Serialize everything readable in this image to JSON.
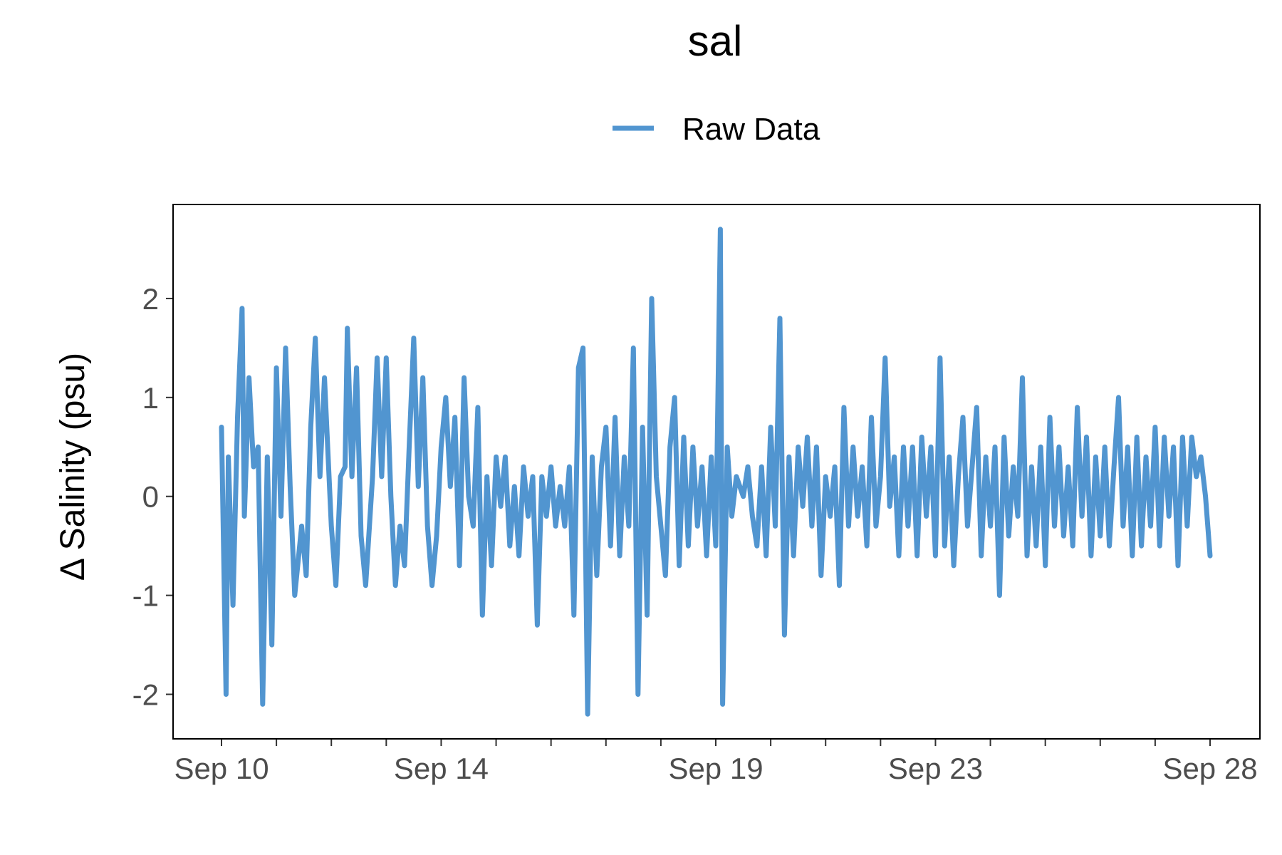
{
  "chart_data": {
    "type": "line",
    "title": "sal",
    "xlabel": "",
    "ylabel": "Δ Salinity (psu)",
    "x_range": [
      "2023-09-10",
      "2023-09-28"
    ],
    "ylim": [
      -2.45,
      2.95
    ],
    "grid": false,
    "legend_position": "top",
    "x_tick_labels": [
      "Sep 10",
      "Sep 14",
      "Sep 19",
      "Sep 23",
      "Sep 28"
    ],
    "x_tick_dates": [
      "2023-09-10",
      "2023-09-14",
      "2023-09-19",
      "2023-09-23",
      "2023-09-28"
    ],
    "x_minor_tick_dates": [
      "2023-09-11",
      "2023-09-12",
      "2023-09-13",
      "2023-09-15",
      "2023-09-16",
      "2023-09-17",
      "2023-09-18",
      "2023-09-20",
      "2023-09-21",
      "2023-09-22",
      "2023-09-24",
      "2023-09-25",
      "2023-09-26",
      "2023-09-27"
    ],
    "y_ticks": [
      -2,
      -1,
      0,
      1,
      2
    ],
    "y_tick_labels": [
      "-2",
      "-1",
      "0",
      "1",
      "2"
    ],
    "series": [
      {
        "name": "Raw Data",
        "color": "#5195d0",
        "points": [
          [
            "2023-09-10 00:00",
            0.7
          ],
          [
            "2023-09-10 02:00",
            -2.0
          ],
          [
            "2023-09-10 03:00",
            0.4
          ],
          [
            "2023-09-10 05:00",
            -1.1
          ],
          [
            "2023-09-10 07:00",
            0.8
          ],
          [
            "2023-09-10 09:00",
            1.9
          ],
          [
            "2023-09-10 10:00",
            -0.2
          ],
          [
            "2023-09-10 12:00",
            1.2
          ],
          [
            "2023-09-10 14:00",
            0.3
          ],
          [
            "2023-09-10 16:00",
            0.5
          ],
          [
            "2023-09-10 18:00",
            -2.1
          ],
          [
            "2023-09-10 20:00",
            0.4
          ],
          [
            "2023-09-10 22:00",
            -1.5
          ],
          [
            "2023-09-11 00:00",
            1.3
          ],
          [
            "2023-09-11 02:00",
            -0.2
          ],
          [
            "2023-09-11 04:00",
            1.5
          ],
          [
            "2023-09-11 06:00",
            0.1
          ],
          [
            "2023-09-11 08:00",
            -1.0
          ],
          [
            "2023-09-11 11:00",
            -0.3
          ],
          [
            "2023-09-11 13:00",
            -0.8
          ],
          [
            "2023-09-11 15:00",
            0.7
          ],
          [
            "2023-09-11 17:00",
            1.6
          ],
          [
            "2023-09-11 19:00",
            0.2
          ],
          [
            "2023-09-11 21:00",
            1.2
          ],
          [
            "2023-09-12 00:00",
            -0.3
          ],
          [
            "2023-09-12 02:00",
            -0.9
          ],
          [
            "2023-09-12 04:00",
            0.2
          ],
          [
            "2023-09-12 06:00",
            0.3
          ],
          [
            "2023-09-12 07:00",
            1.7
          ],
          [
            "2023-09-12 09:00",
            0.2
          ],
          [
            "2023-09-12 11:00",
            1.3
          ],
          [
            "2023-09-12 13:00",
            -0.4
          ],
          [
            "2023-09-12 15:00",
            -0.9
          ],
          [
            "2023-09-12 18:00",
            0.2
          ],
          [
            "2023-09-12 20:00",
            1.4
          ],
          [
            "2023-09-12 22:00",
            0.2
          ],
          [
            "2023-09-13 00:00",
            1.4
          ],
          [
            "2023-09-13 02:00",
            0.0
          ],
          [
            "2023-09-13 04:00",
            -0.9
          ],
          [
            "2023-09-13 06:00",
            -0.3
          ],
          [
            "2023-09-13 08:00",
            -0.7
          ],
          [
            "2023-09-13 10:00",
            0.5
          ],
          [
            "2023-09-13 12:00",
            1.6
          ],
          [
            "2023-09-13 14:00",
            0.1
          ],
          [
            "2023-09-13 16:00",
            1.2
          ],
          [
            "2023-09-13 18:00",
            -0.3
          ],
          [
            "2023-09-13 20:00",
            -0.9
          ],
          [
            "2023-09-13 22:00",
            -0.4
          ],
          [
            "2023-09-14 00:00",
            0.5
          ],
          [
            "2023-09-14 02:00",
            1.0
          ],
          [
            "2023-09-14 04:00",
            0.1
          ],
          [
            "2023-09-14 06:00",
            0.8
          ],
          [
            "2023-09-14 08:00",
            -0.7
          ],
          [
            "2023-09-14 10:00",
            1.2
          ],
          [
            "2023-09-14 12:00",
            0.0
          ],
          [
            "2023-09-14 14:00",
            -0.3
          ],
          [
            "2023-09-14 16:00",
            0.9
          ],
          [
            "2023-09-14 18:00",
            -1.2
          ],
          [
            "2023-09-14 20:00",
            0.2
          ],
          [
            "2023-09-14 22:00",
            -0.7
          ],
          [
            "2023-09-15 00:00",
            0.4
          ],
          [
            "2023-09-15 02:00",
            -0.1
          ],
          [
            "2023-09-15 04:00",
            0.4
          ],
          [
            "2023-09-15 06:00",
            -0.5
          ],
          [
            "2023-09-15 08:00",
            0.1
          ],
          [
            "2023-09-15 10:00",
            -0.6
          ],
          [
            "2023-09-15 12:00",
            0.3
          ],
          [
            "2023-09-15 14:00",
            -0.2
          ],
          [
            "2023-09-15 16:00",
            0.2
          ],
          [
            "2023-09-15 18:00",
            -1.3
          ],
          [
            "2023-09-15 20:00",
            0.2
          ],
          [
            "2023-09-15 22:00",
            -0.2
          ],
          [
            "2023-09-16 00:00",
            0.3
          ],
          [
            "2023-09-16 02:00",
            -0.3
          ],
          [
            "2023-09-16 04:00",
            0.1
          ],
          [
            "2023-09-16 06:00",
            -0.3
          ],
          [
            "2023-09-16 08:00",
            0.3
          ],
          [
            "2023-09-16 10:00",
            -1.2
          ],
          [
            "2023-09-16 12:00",
            1.3
          ],
          [
            "2023-09-16 14:00",
            1.5
          ],
          [
            "2023-09-16 16:00",
            -2.2
          ],
          [
            "2023-09-16 18:00",
            0.4
          ],
          [
            "2023-09-16 20:00",
            -0.8
          ],
          [
            "2023-09-16 22:00",
            0.3
          ],
          [
            "2023-09-17 00:00",
            0.7
          ],
          [
            "2023-09-17 02:00",
            -0.5
          ],
          [
            "2023-09-17 04:00",
            0.8
          ],
          [
            "2023-09-17 06:00",
            -0.6
          ],
          [
            "2023-09-17 08:00",
            0.4
          ],
          [
            "2023-09-17 10:00",
            -0.3
          ],
          [
            "2023-09-17 12:00",
            1.5
          ],
          [
            "2023-09-17 14:00",
            -2.0
          ],
          [
            "2023-09-17 16:00",
            0.7
          ],
          [
            "2023-09-17 18:00",
            -1.2
          ],
          [
            "2023-09-17 20:00",
            2.0
          ],
          [
            "2023-09-17 22:00",
            0.2
          ],
          [
            "2023-09-18 00:00",
            -0.3
          ],
          [
            "2023-09-18 02:00",
            -0.8
          ],
          [
            "2023-09-18 04:00",
            0.5
          ],
          [
            "2023-09-18 06:00",
            1.0
          ],
          [
            "2023-09-18 08:00",
            -0.7
          ],
          [
            "2023-09-18 10:00",
            0.6
          ],
          [
            "2023-09-18 12:00",
            -0.5
          ],
          [
            "2023-09-18 14:00",
            0.5
          ],
          [
            "2023-09-18 16:00",
            -0.3
          ],
          [
            "2023-09-18 18:00",
            0.3
          ],
          [
            "2023-09-18 20:00",
            -0.6
          ],
          [
            "2023-09-18 22:00",
            0.4
          ],
          [
            "2023-09-19 00:00",
            -0.5
          ],
          [
            "2023-09-19 02:00",
            2.7
          ],
          [
            "2023-09-19 03:00",
            -2.1
          ],
          [
            "2023-09-19 05:00",
            0.5
          ],
          [
            "2023-09-19 07:00",
            -0.2
          ],
          [
            "2023-09-19 09:00",
            0.2
          ],
          [
            "2023-09-19 12:00",
            0.0
          ],
          [
            "2023-09-19 14:00",
            0.3
          ],
          [
            "2023-09-19 16:00",
            -0.2
          ],
          [
            "2023-09-19 18:00",
            -0.5
          ],
          [
            "2023-09-19 20:00",
            0.3
          ],
          [
            "2023-09-19 22:00",
            -0.6
          ],
          [
            "2023-09-20 00:00",
            0.7
          ],
          [
            "2023-09-20 02:00",
            -0.3
          ],
          [
            "2023-09-20 04:00",
            1.8
          ],
          [
            "2023-09-20 06:00",
            -1.4
          ],
          [
            "2023-09-20 08:00",
            0.4
          ],
          [
            "2023-09-20 10:00",
            -0.6
          ],
          [
            "2023-09-20 12:00",
            0.5
          ],
          [
            "2023-09-20 14:00",
            -0.1
          ],
          [
            "2023-09-20 16:00",
            0.6
          ],
          [
            "2023-09-20 18:00",
            -0.3
          ],
          [
            "2023-09-20 20:00",
            0.5
          ],
          [
            "2023-09-20 22:00",
            -0.8
          ],
          [
            "2023-09-21 00:00",
            0.2
          ],
          [
            "2023-09-21 02:00",
            -0.2
          ],
          [
            "2023-09-21 04:00",
            0.3
          ],
          [
            "2023-09-21 06:00",
            -0.9
          ],
          [
            "2023-09-21 08:00",
            0.9
          ],
          [
            "2023-09-21 10:00",
            -0.3
          ],
          [
            "2023-09-21 12:00",
            0.5
          ],
          [
            "2023-09-21 14:00",
            -0.2
          ],
          [
            "2023-09-21 16:00",
            0.3
          ],
          [
            "2023-09-21 18:00",
            -0.5
          ],
          [
            "2023-09-21 20:00",
            0.8
          ],
          [
            "2023-09-21 22:00",
            -0.3
          ],
          [
            "2023-09-22 00:00",
            0.2
          ],
          [
            "2023-09-22 02:00",
            1.4
          ],
          [
            "2023-09-22 04:00",
            -0.1
          ],
          [
            "2023-09-22 06:00",
            0.4
          ],
          [
            "2023-09-22 08:00",
            -0.6
          ],
          [
            "2023-09-22 10:00",
            0.5
          ],
          [
            "2023-09-22 12:00",
            -0.3
          ],
          [
            "2023-09-22 14:00",
            0.5
          ],
          [
            "2023-09-22 16:00",
            -0.6
          ],
          [
            "2023-09-22 18:00",
            0.6
          ],
          [
            "2023-09-22 20:00",
            -0.2
          ],
          [
            "2023-09-22 22:00",
            0.5
          ],
          [
            "2023-09-23 00:00",
            -0.6
          ],
          [
            "2023-09-23 02:00",
            1.4
          ],
          [
            "2023-09-23 04:00",
            -0.5
          ],
          [
            "2023-09-23 06:00",
            0.4
          ],
          [
            "2023-09-23 08:00",
            -0.7
          ],
          [
            "2023-09-23 10:00",
            0.2
          ],
          [
            "2023-09-23 12:00",
            0.8
          ],
          [
            "2023-09-23 14:00",
            -0.3
          ],
          [
            "2023-09-23 16:00",
            0.3
          ],
          [
            "2023-09-23 18:00",
            0.9
          ],
          [
            "2023-09-23 20:00",
            -0.6
          ],
          [
            "2023-09-23 22:00",
            0.4
          ],
          [
            "2023-09-24 00:00",
            -0.3
          ],
          [
            "2023-09-24 02:00",
            0.5
          ],
          [
            "2023-09-24 04:00",
            -1.0
          ],
          [
            "2023-09-24 06:00",
            0.6
          ],
          [
            "2023-09-24 08:00",
            -0.4
          ],
          [
            "2023-09-24 10:00",
            0.3
          ],
          [
            "2023-09-24 12:00",
            -0.2
          ],
          [
            "2023-09-24 14:00",
            1.2
          ],
          [
            "2023-09-24 16:00",
            -0.6
          ],
          [
            "2023-09-24 18:00",
            0.3
          ],
          [
            "2023-09-24 20:00",
            -0.5
          ],
          [
            "2023-09-24 22:00",
            0.5
          ],
          [
            "2023-09-25 00:00",
            -0.7
          ],
          [
            "2023-09-25 02:00",
            0.8
          ],
          [
            "2023-09-25 04:00",
            -0.3
          ],
          [
            "2023-09-25 06:00",
            0.5
          ],
          [
            "2023-09-25 08:00",
            -0.4
          ],
          [
            "2023-09-25 10:00",
            0.3
          ],
          [
            "2023-09-25 12:00",
            -0.5
          ],
          [
            "2023-09-25 14:00",
            0.9
          ],
          [
            "2023-09-25 16:00",
            -0.2
          ],
          [
            "2023-09-25 18:00",
            0.6
          ],
          [
            "2023-09-25 20:00",
            -0.6
          ],
          [
            "2023-09-25 22:00",
            0.4
          ],
          [
            "2023-09-26 00:00",
            -0.4
          ],
          [
            "2023-09-26 02:00",
            0.5
          ],
          [
            "2023-09-26 04:00",
            -0.5
          ],
          [
            "2023-09-26 06:00",
            0.3
          ],
          [
            "2023-09-26 08:00",
            1.0
          ],
          [
            "2023-09-26 10:00",
            -0.3
          ],
          [
            "2023-09-26 12:00",
            0.5
          ],
          [
            "2023-09-26 14:00",
            -0.6
          ],
          [
            "2023-09-26 16:00",
            0.6
          ],
          [
            "2023-09-26 18:00",
            -0.5
          ],
          [
            "2023-09-26 20:00",
            0.4
          ],
          [
            "2023-09-26 22:00",
            -0.3
          ],
          [
            "2023-09-27 00:00",
            0.7
          ],
          [
            "2023-09-27 02:00",
            -0.5
          ],
          [
            "2023-09-27 04:00",
            0.6
          ],
          [
            "2023-09-27 06:00",
            -0.2
          ],
          [
            "2023-09-27 08:00",
            0.5
          ],
          [
            "2023-09-27 10:00",
            -0.7
          ],
          [
            "2023-09-27 12:00",
            0.6
          ],
          [
            "2023-09-27 14:00",
            -0.3
          ],
          [
            "2023-09-27 16:00",
            0.6
          ],
          [
            "2023-09-27 18:00",
            0.2
          ],
          [
            "2023-09-27 20:00",
            0.4
          ],
          [
            "2023-09-27 22:00",
            0.0
          ],
          [
            "2023-09-28 00:00",
            -0.6
          ]
        ]
      }
    ]
  }
}
